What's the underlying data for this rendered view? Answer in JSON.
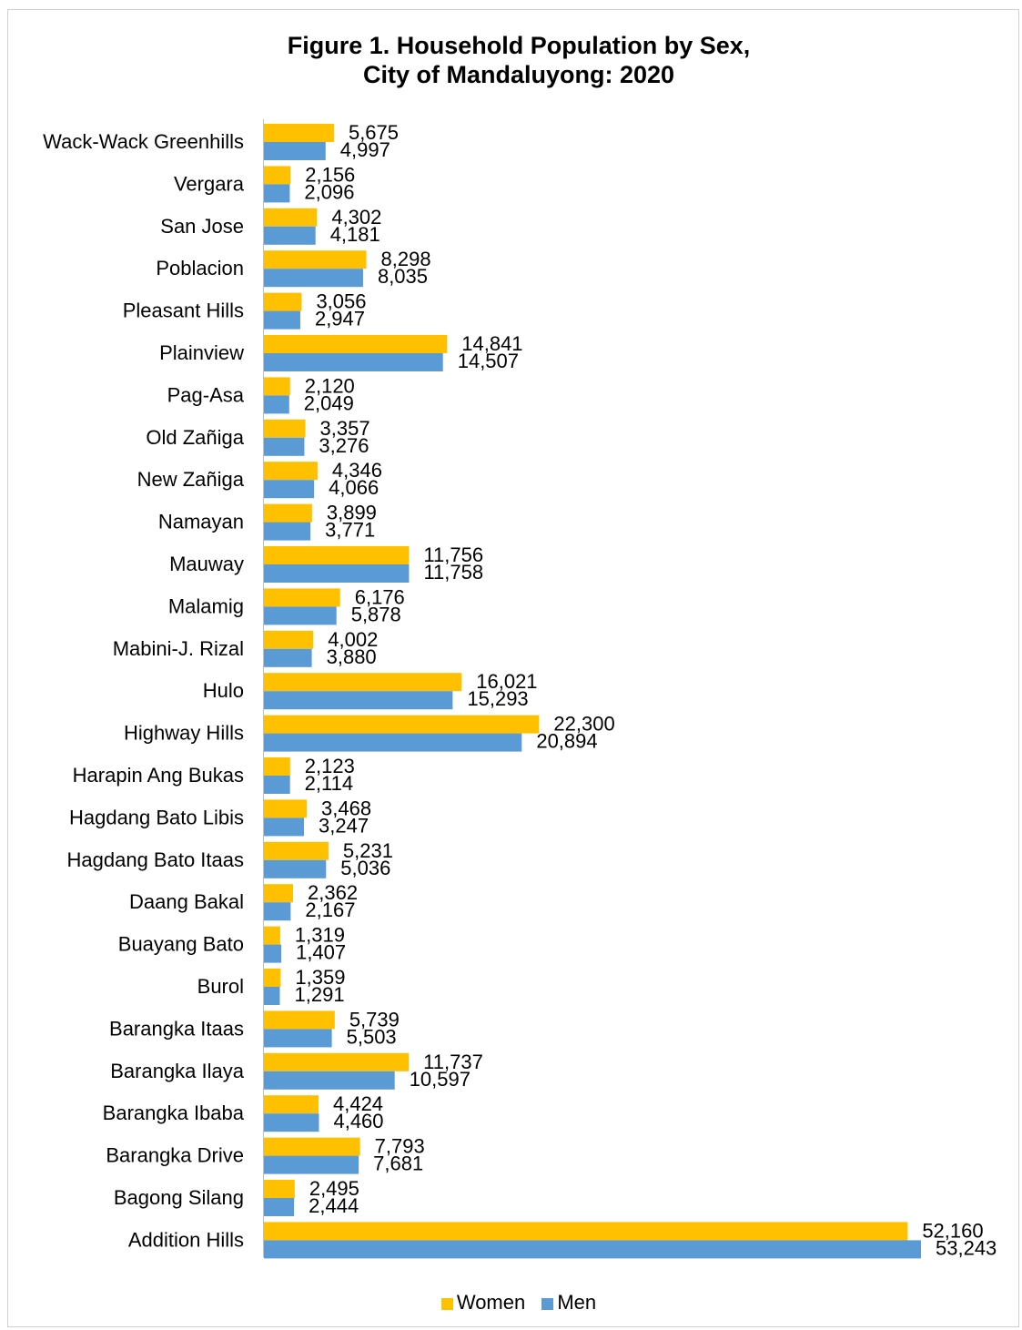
{
  "chart_data": {
    "type": "bar",
    "orientation": "horizontal",
    "title": "Figure 1. Household Population by Sex,",
    "subtitle": "City of Mandaluyong: 2020",
    "categories": [
      "Wack-Wack Greenhills",
      "Vergara",
      "San Jose",
      "Poblacion",
      "Pleasant Hills",
      "Plainview",
      "Pag-Asa",
      "Old Zañiga",
      "New Zañiga",
      "Namayan",
      "Mauway",
      "Malamig",
      "Mabini-J. Rizal",
      "Hulo",
      "Highway Hills",
      "Harapin Ang Bukas",
      "Hagdang Bato Libis",
      "Hagdang Bato Itaas",
      "Daang Bakal",
      "Buayang Bato",
      "Burol",
      "Barangka Itaas",
      "Barangka Ilaya",
      "Barangka Ibaba",
      "Barangka Drive",
      "Bagong Silang",
      "Addition Hills"
    ],
    "series": [
      {
        "name": "Women",
        "color": "#FFC000",
        "values": [
          5675,
          2156,
          4302,
          8298,
          3056,
          14841,
          2120,
          3357,
          4346,
          3899,
          11756,
          6176,
          4002,
          16021,
          22300,
          2123,
          3468,
          5231,
          2362,
          1319,
          1359,
          5739,
          11737,
          4424,
          7793,
          2495,
          52160
        ],
        "labels": [
          "5,675",
          "2,156",
          "4,302",
          "8,298",
          "3,056",
          "14,841",
          "2,120",
          "3,357",
          "4,346",
          "3,899",
          "11,756",
          "6,176",
          "4,002",
          "16,021",
          "22,300",
          "2,123",
          "3,468",
          "5,231",
          "2,362",
          "1,319",
          "1,359",
          "5,739",
          "11,737",
          "4,424",
          "7,793",
          "2,495",
          "52,160"
        ]
      },
      {
        "name": "Men",
        "color": "#5B9BD5",
        "values": [
          4997,
          2096,
          4181,
          8035,
          2947,
          14507,
          2049,
          3276,
          4066,
          3771,
          11758,
          5878,
          3880,
          15293,
          20894,
          2114,
          3247,
          5036,
          2167,
          1407,
          1291,
          5503,
          10597,
          4460,
          7681,
          2444,
          53243
        ],
        "labels": [
          "4,997",
          "2,096",
          "4,181",
          "8,035",
          "2,947",
          "14,507",
          "2,049",
          "3,276",
          "4,066",
          "3,771",
          "11,758",
          "5,878",
          "3,880",
          "15,293",
          "20,894",
          "2,114",
          "3,247",
          "5,036",
          "2,167",
          "1,407",
          "1,291",
          "5,503",
          "10,597",
          "4,460",
          "7,681",
          "2,444",
          "53,243"
        ]
      }
    ],
    "xlim": [
      0,
      54000
    ],
    "grid": false,
    "legend_position": "bottom"
  }
}
